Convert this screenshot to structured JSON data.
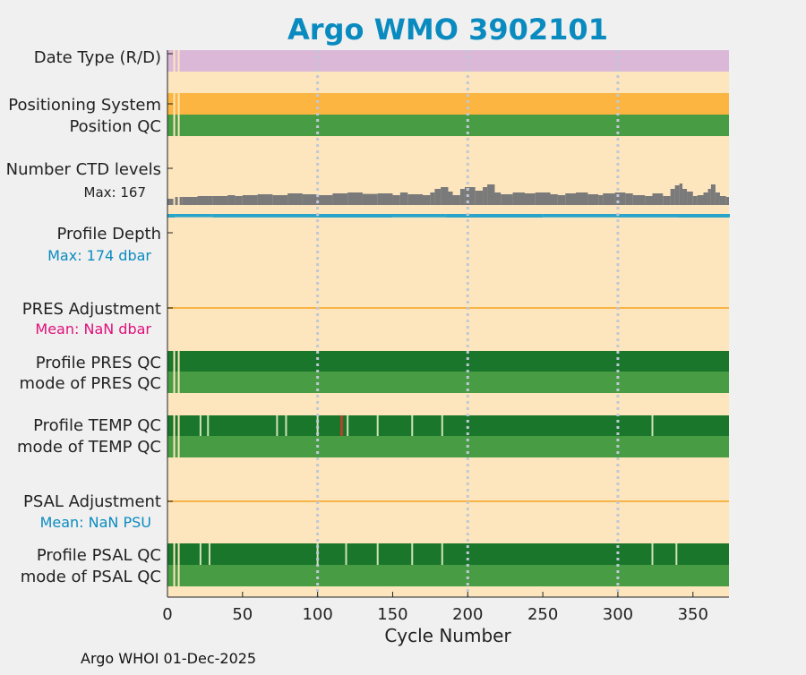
{
  "title": "Argo WMO 3902101",
  "footer": "Argo WHOI 01-Dec-2025",
  "colors": {
    "background": "#f0f0f0",
    "panel": "#fde6bd",
    "title": "#0a8bc0",
    "date_type": "#dbb8d8",
    "positioning": "#fbb540",
    "qc_good": "#1a762b",
    "qc_mode": "#489c44",
    "qc_gap": "#cfe3b6",
    "qc_bad": "#b5412a",
    "ctd_levels": "#7a7a7a",
    "depth": "#2aa4c8",
    "adjust_line": "#f7b446",
    "pres_mean": "#e0107a",
    "psal_mean": "#0a8bc0",
    "grid": "#c0c8d8",
    "text": "#222222"
  },
  "rows": {
    "date_type": "Date Type (R/D)",
    "positioning": "Positioning System",
    "position_qc": "Position QC",
    "ctd_levels": "Number CTD levels",
    "ctd_max": "Max: 167",
    "profile_depth": "Profile Depth",
    "depth_max": "Max:  174 dbar",
    "pres_adjustment": "PRES Adjustment",
    "pres_mean": "Mean:  NaN dbar",
    "profile_pres_qc": "Profile PRES QC",
    "mode_pres_qc": "mode of PRES QC",
    "profile_temp_qc": "Profile TEMP QC",
    "mode_temp_qc": "mode of TEMP QC",
    "psal_adjustment": "PSAL Adjustment",
    "psal_mean": "Mean:  NaN PSU",
    "profile_psal_qc": "Profile PSAL QC",
    "mode_psal_qc": "mode of PSAL QC"
  },
  "chart_data": {
    "type": "bar",
    "xlabel": "Cycle Number",
    "xlim": [
      0,
      374
    ],
    "xticks": [
      0,
      50,
      100,
      150,
      200,
      250,
      300,
      350
    ],
    "grid_x": [
      100,
      200,
      300
    ],
    "early_gaps": [
      4.5,
      7.5
    ],
    "qc_gaps": {
      "temp": [
        22,
        27,
        73,
        79,
        100,
        120,
        140,
        163,
        183,
        323
      ],
      "psal": [
        22,
        28,
        100,
        119,
        140,
        163,
        183,
        323,
        339
      ]
    },
    "temp_bad_cycles": [
      116
    ],
    "ctd_levels": {
      "max": 167,
      "segments": [
        [
          0,
          0.35
        ],
        [
          5,
          0.45
        ],
        [
          10,
          0.45
        ],
        [
          20,
          0.5
        ],
        [
          30,
          0.5
        ],
        [
          40,
          0.55
        ],
        [
          45,
          0.5
        ],
        [
          50,
          0.55
        ],
        [
          60,
          0.6
        ],
        [
          70,
          0.55
        ],
        [
          80,
          0.65
        ],
        [
          90,
          0.6
        ],
        [
          100,
          0.55
        ],
        [
          110,
          0.65
        ],
        [
          120,
          0.7
        ],
        [
          130,
          0.62
        ],
        [
          140,
          0.65
        ],
        [
          150,
          0.55
        ],
        [
          155,
          0.7
        ],
        [
          160,
          0.6
        ],
        [
          170,
          0.55
        ],
        [
          175,
          0.7
        ],
        [
          178,
          0.9
        ],
        [
          182,
          1.0
        ],
        [
          187,
          0.75
        ],
        [
          190,
          0.55
        ],
        [
          195,
          0.9
        ],
        [
          198,
          1.0
        ],
        [
          205,
          0.8
        ],
        [
          210,
          1.0
        ],
        [
          213,
          1.15
        ],
        [
          218,
          0.7
        ],
        [
          222,
          0.6
        ],
        [
          230,
          0.7
        ],
        [
          238,
          0.65
        ],
        [
          245,
          0.7
        ],
        [
          255,
          0.6
        ],
        [
          260,
          0.55
        ],
        [
          265,
          0.65
        ],
        [
          272,
          0.7
        ],
        [
          280,
          0.6
        ],
        [
          287,
          0.55
        ],
        [
          290,
          0.65
        ],
        [
          298,
          0.7
        ],
        [
          305,
          0.65
        ],
        [
          310,
          0.55
        ],
        [
          318,
          0.5
        ],
        [
          323,
          0.65
        ],
        [
          330,
          0.5
        ],
        [
          335,
          0.9
        ],
        [
          338,
          1.1
        ],
        [
          341,
          1.2
        ],
        [
          343,
          0.9
        ],
        [
          346,
          0.75
        ],
        [
          350,
          0.5
        ],
        [
          353,
          0.55
        ],
        [
          357,
          0.7
        ],
        [
          360,
          0.9
        ],
        [
          362,
          1.15
        ],
        [
          365,
          0.7
        ],
        [
          368,
          0.5
        ],
        [
          372,
          0.45
        ]
      ]
    },
    "profile_depth": {
      "max_dbar": 174,
      "segments": [
        [
          0,
          1
        ],
        [
          5,
          0.8
        ],
        [
          30,
          0.95
        ],
        [
          100,
          1.0
        ],
        [
          150,
          0.9
        ],
        [
          185,
          1.0
        ],
        [
          250,
          0.9
        ],
        [
          300,
          0.95
        ],
        [
          340,
          1.0
        ],
        [
          374,
          0.9
        ]
      ]
    }
  }
}
